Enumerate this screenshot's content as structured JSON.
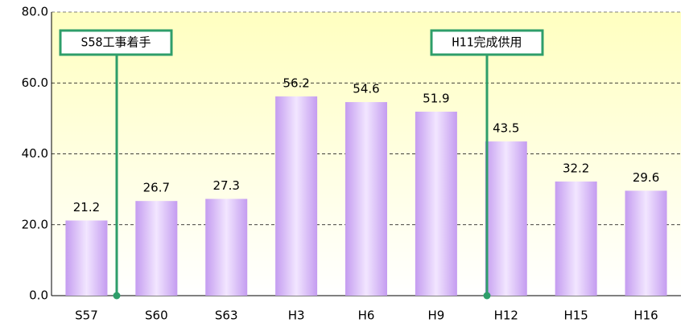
{
  "chart_data": {
    "type": "bar",
    "categories": [
      "S57",
      "S60",
      "S63",
      "H3",
      "H6",
      "H9",
      "H12",
      "H15",
      "H16"
    ],
    "values": [
      21.2,
      26.7,
      27.3,
      56.2,
      54.6,
      51.9,
      43.5,
      32.2,
      29.6
    ],
    "color": "#c8a2f0",
    "ylim": [
      0,
      80
    ],
    "yticks": [
      {
        "value": 0,
        "label": "0.0"
      },
      {
        "value": 20,
        "label": "20.0"
      },
      {
        "value": 40,
        "label": "40.0"
      },
      {
        "value": 60,
        "label": "60.0"
      },
      {
        "value": 80,
        "label": "80.0"
      }
    ],
    "grid": true,
    "annotations": [
      "S58工事着手",
      "H11完成供用"
    ]
  }
}
